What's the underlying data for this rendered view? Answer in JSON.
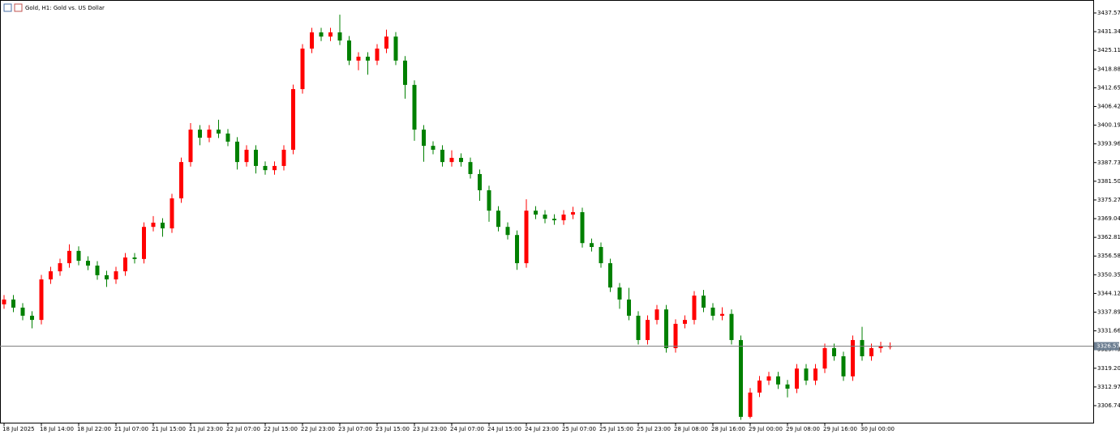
{
  "chart_data": {
    "type": "candlestick",
    "title": "Gold, H1: Gold vs. US Dollar",
    "up_color": "#ff0000",
    "down_color": "#008000",
    "categories": [
      "18 Jul 2025",
      null,
      null,
      null,
      "18 Jul 14:00",
      null,
      null,
      null,
      "18 Jul 22:00",
      null,
      null,
      null,
      "21 Jul 07:00",
      null,
      null,
      null,
      "21 Jul 15:00",
      null,
      null,
      null,
      "21 Jul 23:00",
      null,
      null,
      null,
      "22 Jul 07:00",
      null,
      null,
      null,
      "22 Jul 15:00",
      null,
      null,
      null,
      "22 Jul 23:00",
      null,
      null,
      null,
      "23 Jul 07:00",
      null,
      null,
      null,
      "23 Jul 15:00",
      null,
      null,
      null,
      "23 Jul 23:00",
      null,
      null,
      null,
      "24 Jul 07:00",
      null,
      null,
      null,
      "24 Jul 15:00",
      null,
      null,
      null,
      "24 Jul 23:00",
      null,
      null,
      null,
      "25 Jul 07:00",
      null,
      null,
      null,
      "25 Jul 15:00",
      null,
      null,
      null,
      "25 Jul 23:00",
      null,
      null,
      null,
      "28 Jul 08:00",
      null,
      null,
      null,
      "28 Jul 16:00",
      null,
      null,
      null,
      "29 Jul 00:00",
      null,
      null,
      null,
      "29 Jul 08:00",
      null,
      null,
      null,
      "29 Jul 16:00",
      null,
      null,
      null,
      "30 Jul 00:00",
      null,
      null,
      null
    ],
    "open": [
      3340.5,
      3342.1,
      3339.4,
      3336.7,
      3335.3,
      3348.8,
      3351.5,
      3354.2,
      3358.3,
      3355.0,
      3353.4,
      3350.2,
      3348.8,
      3351.5,
      3356.1,
      3355.6,
      3366.3,
      3367.7,
      3365.8,
      3375.8,
      3387.9,
      3398.7,
      3396.0,
      3398.7,
      3397.4,
      3394.7,
      3387.9,
      3392.0,
      3386.6,
      3385.2,
      3386.6,
      3392.0,
      3412.2,
      3425.7,
      3431.1,
      3429.7,
      3431.1,
      3428.4,
      3421.7,
      3423.0,
      3421.7,
      3425.7,
      3429.7,
      3421.7,
      3413.6,
      3398.7,
      3393.3,
      3392.0,
      3387.9,
      3389.3,
      3387.9,
      3383.9,
      3378.5,
      3371.7,
      3366.3,
      3363.6,
      3354.2,
      3371.7,
      3370.4,
      3369.0,
      3368.5,
      3370.4,
      3371.2,
      3360.9,
      3359.6,
      3354.2,
      3346.1,
      3342.1,
      3336.7,
      3328.6,
      3335.3,
      3338.8,
      3325.9,
      3334.0,
      3335.3,
      3343.4,
      3339.4,
      3336.7,
      3337.3,
      3328.6,
      3303.0,
      3311.1,
      3315.1,
      3316.5,
      3313.8,
      3312.4,
      3319.1,
      3315.1,
      3319.1,
      3325.9,
      3323.2,
      3316.5,
      3328.6,
      3323.2,
      3325.9,
      3326.5
    ],
    "high": [
      3343.6,
      3343.6,
      3340.9,
      3338.2,
      3350.3,
      3353.0,
      3355.7,
      3360.5,
      3359.8,
      3356.5,
      3354.9,
      3351.7,
      3353.0,
      3357.6,
      3357.6,
      3367.8,
      3369.9,
      3369.2,
      3377.3,
      3389.4,
      3400.9,
      3400.2,
      3400.2,
      3402.0,
      3398.9,
      3396.2,
      3393.5,
      3393.5,
      3388.1,
      3388.1,
      3393.5,
      3413.7,
      3427.2,
      3432.6,
      3432.6,
      3432.6,
      3437.0,
      3429.9,
      3424.5,
      3424.5,
      3427.2,
      3432.0,
      3431.2,
      3423.2,
      3415.1,
      3400.2,
      3394.8,
      3393.5,
      3391.8,
      3390.8,
      3389.4,
      3385.4,
      3380.0,
      3373.2,
      3367.8,
      3365.1,
      3375.5,
      3373.2,
      3371.9,
      3370.5,
      3371.9,
      3373.0,
      3372.7,
      3362.4,
      3361.1,
      3355.7,
      3347.6,
      3346.0,
      3338.2,
      3336.8,
      3340.3,
      3340.3,
      3335.5,
      3336.8,
      3344.9,
      3345.3,
      3340.9,
      3339.5,
      3338.8,
      3330.1,
      3312.6,
      3316.6,
      3318.0,
      3318.0,
      3315.3,
      3320.6,
      3320.6,
      3320.6,
      3327.4,
      3327.4,
      3324.7,
      3330.1,
      3333.0,
      3327.4,
      3328.0,
      3327.8
    ],
    "low": [
      3339.0,
      3337.9,
      3335.2,
      3332.5,
      3333.8,
      3347.3,
      3350.0,
      3352.7,
      3353.5,
      3351.9,
      3348.7,
      3346.3,
      3347.3,
      3350.0,
      3354.1,
      3354.1,
      3364.8,
      3363.0,
      3364.3,
      3374.3,
      3386.4,
      3393.5,
      3394.5,
      3395.9,
      3393.2,
      3385.4,
      3386.4,
      3384.1,
      3383.7,
      3383.7,
      3385.1,
      3390.5,
      3410.7,
      3424.2,
      3428.2,
      3428.2,
      3426.9,
      3420.2,
      3418.5,
      3417.0,
      3420.2,
      3424.2,
      3420.2,
      3409.0,
      3395.0,
      3388.0,
      3390.5,
      3386.4,
      3386.4,
      3386.4,
      3382.4,
      3375.0,
      3368.0,
      3364.8,
      3362.1,
      3352.0,
      3352.7,
      3368.9,
      3367.5,
      3367.0,
      3367.0,
      3368.9,
      3359.4,
      3358.1,
      3352.7,
      3344.6,
      3339.0,
      3335.2,
      3327.1,
      3327.1,
      3333.8,
      3324.4,
      3324.4,
      3332.5,
      3333.8,
      3337.9,
      3335.2,
      3335.2,
      3327.1,
      3302.0,
      3302.5,
      3309.6,
      3313.6,
      3312.3,
      3309.5,
      3310.9,
      3313.6,
      3313.6,
      3317.6,
      3321.7,
      3315.0,
      3315.0,
      3321.7,
      3321.7,
      3324.4,
      3325.5
    ],
    "close": [
      3342.1,
      3339.4,
      3336.7,
      3335.3,
      3348.8,
      3351.5,
      3354.2,
      3358.3,
      3355.0,
      3353.4,
      3350.2,
      3348.8,
      3351.5,
      3356.1,
      3355.6,
      3366.3,
      3367.7,
      3365.8,
      3375.8,
      3387.9,
      3398.7,
      3396.0,
      3398.7,
      3397.4,
      3394.7,
      3387.9,
      3392.0,
      3386.6,
      3385.2,
      3386.6,
      3392.0,
      3412.2,
      3425.7,
      3431.1,
      3429.7,
      3431.1,
      3428.4,
      3421.7,
      3423.0,
      3421.7,
      3425.7,
      3429.7,
      3421.7,
      3413.6,
      3398.7,
      3393.3,
      3392.0,
      3387.9,
      3389.3,
      3387.9,
      3383.9,
      3378.5,
      3371.7,
      3366.3,
      3363.6,
      3354.2,
      3371.7,
      3370.4,
      3369.0,
      3368.5,
      3370.4,
      3371.2,
      3360.9,
      3359.6,
      3354.2,
      3346.1,
      3342.1,
      3336.7,
      3328.6,
      3335.3,
      3338.8,
      3325.9,
      3334.0,
      3335.3,
      3343.4,
      3339.4,
      3336.7,
      3337.3,
      3328.6,
      3303.0,
      3311.1,
      3315.1,
      3316.5,
      3313.8,
      3312.4,
      3319.1,
      3315.1,
      3319.1,
      3325.9,
      3323.2,
      3316.5,
      3328.6,
      3323.2,
      3325.9,
      3326.5,
      3326.57
    ],
    "last_price": 3326.57,
    "ylim": [
      3301.07,
      3441.89
    ],
    "yticks": [
      3437.57,
      3431.34,
      3425.11,
      3418.88,
      3412.65,
      3406.42,
      3400.19,
      3393.96,
      3387.73,
      {
        "value": 3381.5,
        "label": "3381.50"
      },
      3375.27,
      3369.04,
      3362.81,
      3356.58,
      3350.35,
      3344.12,
      3337.89,
      3331.66,
      3325.43,
      {
        "value": 3319.2,
        "label": "3319.20"
      },
      3312.97,
      3306.74
    ]
  }
}
